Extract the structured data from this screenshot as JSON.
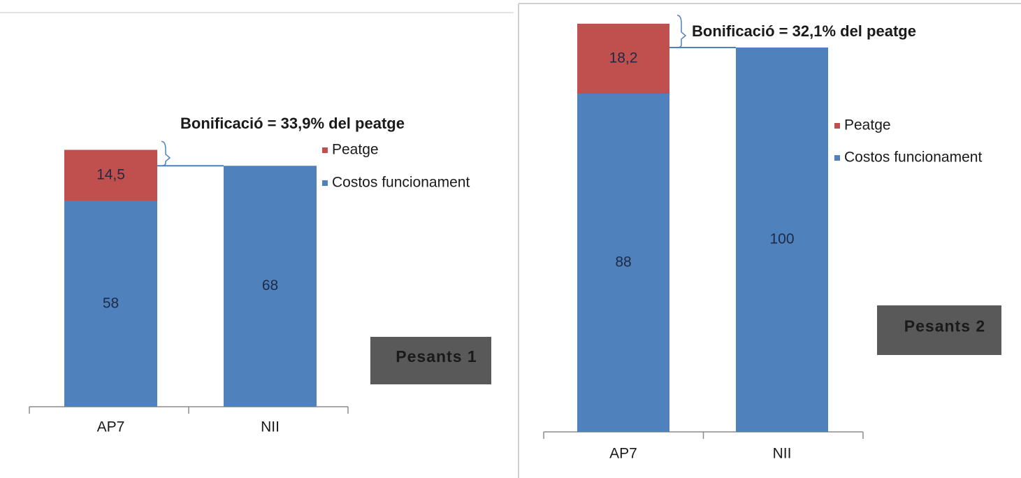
{
  "chart_data": [
    {
      "type": "bar",
      "stacked": true,
      "categories": [
        "AP7",
        "NII"
      ],
      "series": [
        {
          "name": "Costos funcionament",
          "color": "#4f81bd",
          "values": [
            58,
            68
          ]
        },
        {
          "name": "Peatge",
          "color": "#c0504d",
          "values": [
            14.5,
            null
          ],
          "value_labels": [
            "14,5",
            null
          ]
        }
      ],
      "annotation": "Bonificació = 33,9% del peatge",
      "label": "Pesants 1"
    },
    {
      "type": "bar",
      "stacked": true,
      "categories": [
        "AP7",
        "NII"
      ],
      "series": [
        {
          "name": "Costos funcionament",
          "color": "#4f81bd",
          "values": [
            88,
            100
          ]
        },
        {
          "name": "Peatge",
          "color": "#c0504d",
          "values": [
            18.2,
            null
          ],
          "value_labels": [
            "18,2",
            null
          ]
        }
      ],
      "annotation": "Bonificació = 32,1% del peatge",
      "label": "Pesants 2"
    }
  ]
}
